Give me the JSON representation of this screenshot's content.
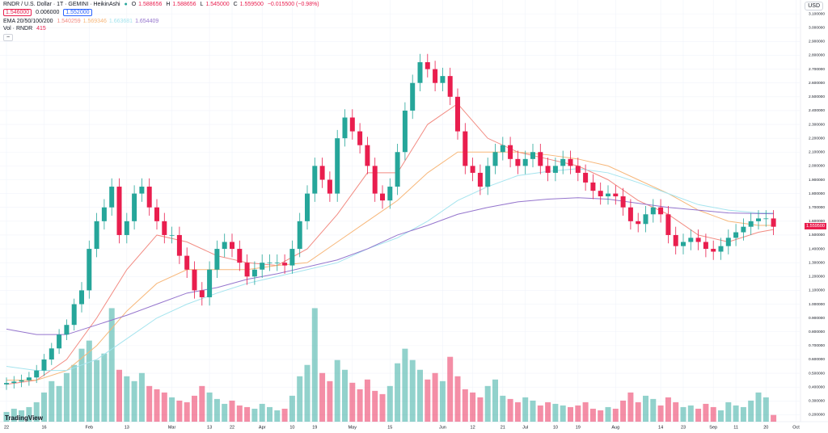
{
  "header": {
    "symbol": "RNDR / U.S. Dollar · 1T · GEMINI · HeikinAshi",
    "o_label": "O",
    "o": "1.588656",
    "h_label": "H",
    "h": "1.588656",
    "l_label": "L",
    "l": "1.545000",
    "c_label": "C",
    "c": "1.559500",
    "change": "−0.015500 (−0.98%)",
    "bid": "1.546000",
    "spread": "0.006000",
    "ask": "1.552000",
    "ema_label": "EMA 20/50/100/200",
    "ema_values": [
      "1.540259",
      "1.569346",
      "1.663681",
      "1.654409"
    ],
    "vol_label": "Vol · RNDR",
    "vol_value": "415",
    "currency": "USD",
    "logo": "TradingView",
    "price_tag": "1.559500"
  },
  "chart_data": {
    "type": "candlestick",
    "up_color": "#26a69a",
    "down_color": "#e91e4e",
    "grid": true,
    "categories": [
      "22",
      null,
      null,
      null,
      null,
      "16",
      null,
      null,
      null,
      null,
      null,
      "Feb",
      null,
      null,
      null,
      null,
      "13",
      null,
      null,
      null,
      null,
      null,
      "Mar",
      null,
      null,
      null,
      null,
      "13",
      null,
      null,
      "22",
      null,
      null,
      null,
      "Apr",
      null,
      null,
      null,
      "10",
      null,
      null,
      "19",
      null,
      null,
      null,
      null,
      "May",
      null,
      null,
      null,
      null,
      "15",
      null,
      null,
      null,
      null,
      null,
      null,
      "Jun",
      null,
      null,
      null,
      "12",
      null,
      null,
      null,
      "21",
      null,
      null,
      "Jul",
      null,
      null,
      null,
      "10",
      null,
      null,
      "19",
      null,
      null,
      null,
      null,
      "Aug",
      null,
      null,
      null,
      null,
      null,
      "14",
      null,
      null,
      "23",
      null,
      null,
      null,
      "Sep",
      null,
      null,
      "11",
      null,
      null,
      null,
      "20",
      null,
      null,
      null,
      "Oct"
    ],
    "open": [
      0.42,
      0.43,
      0.44,
      0.45,
      0.47,
      0.52,
      0.6,
      0.68,
      0.78,
      0.85,
      1.0,
      1.1,
      1.4,
      1.6,
      1.7,
      1.85,
      1.5,
      1.6,
      1.8,
      1.85,
      1.7,
      1.6,
      1.5,
      1.5,
      1.35,
      1.25,
      1.1,
      1.05,
      1.25,
      1.4,
      1.45,
      1.4,
      1.3,
      1.2,
      1.25,
      1.3,
      1.3,
      1.3,
      1.28,
      1.4,
      1.6,
      1.8,
      2.0,
      1.9,
      1.8,
      2.2,
      2.35,
      2.25,
      2.15,
      2.0,
      1.8,
      1.75,
      1.85,
      2.1,
      2.4,
      2.6,
      2.75,
      2.7,
      2.6,
      2.65,
      2.5,
      2.25,
      2.0,
      1.95,
      1.85,
      2.0,
      2.1,
      2.15,
      2.05,
      2.0,
      2.05,
      2.1,
      2.0,
      1.95,
      2.0,
      2.05,
      2.0,
      1.95,
      1.88,
      1.82,
      1.78,
      1.8,
      1.78,
      1.7,
      1.6,
      1.58,
      1.65,
      1.7,
      1.65,
      1.5,
      1.42,
      1.45,
      1.48,
      1.45,
      1.4,
      1.38,
      1.42,
      1.48,
      1.52,
      1.56,
      1.6,
      1.62,
      1.62,
      null,
      null,
      null
    ],
    "high": [
      0.47,
      0.48,
      0.49,
      0.51,
      0.56,
      0.64,
      0.72,
      0.82,
      0.89,
      1.04,
      1.16,
      1.46,
      1.66,
      1.76,
      1.91,
      1.91,
      1.66,
      1.86,
      1.91,
      1.91,
      1.76,
      1.66,
      1.56,
      1.56,
      1.41,
      1.31,
      1.16,
      1.31,
      1.46,
      1.51,
      1.51,
      1.46,
      1.36,
      1.31,
      1.36,
      1.36,
      1.36,
      1.36,
      1.46,
      1.66,
      1.86,
      2.06,
      2.06,
      1.96,
      2.26,
      2.41,
      2.41,
      2.31,
      2.21,
      2.06,
      1.86,
      1.91,
      2.16,
      2.46,
      2.66,
      2.81,
      2.81,
      2.76,
      2.71,
      2.71,
      2.56,
      2.31,
      2.06,
      2.01,
      2.06,
      2.16,
      2.21,
      2.21,
      2.11,
      2.11,
      2.16,
      2.16,
      2.06,
      2.06,
      2.11,
      2.11,
      2.06,
      2.01,
      1.94,
      1.88,
      1.86,
      1.86,
      1.84,
      1.76,
      1.66,
      1.71,
      1.76,
      1.76,
      1.71,
      1.56,
      1.51,
      1.54,
      1.54,
      1.51,
      1.46,
      1.48,
      1.54,
      1.58,
      1.62,
      1.66,
      1.68,
      1.68,
      1.68,
      null,
      null,
      null
    ],
    "low": [
      0.38,
      0.39,
      0.4,
      0.41,
      0.43,
      0.48,
      0.56,
      0.64,
      0.74,
      0.81,
      0.94,
      1.04,
      1.34,
      1.54,
      1.64,
      1.44,
      1.44,
      1.54,
      1.74,
      1.64,
      1.54,
      1.44,
      1.44,
      1.29,
      1.19,
      1.04,
      0.99,
      0.99,
      1.19,
      1.34,
      1.34,
      1.24,
      1.14,
      1.14,
      1.19,
      1.24,
      1.24,
      1.22,
      1.22,
      1.34,
      1.54,
      1.74,
      1.84,
      1.74,
      1.74,
      2.14,
      2.19,
      2.09,
      1.94,
      1.74,
      1.69,
      1.69,
      1.79,
      2.04,
      2.34,
      2.54,
      2.64,
      2.54,
      2.54,
      2.44,
      2.19,
      1.94,
      1.89,
      1.79,
      1.79,
      1.94,
      2.04,
      1.99,
      1.94,
      1.94,
      1.99,
      1.94,
      1.89,
      1.89,
      1.94,
      1.94,
      1.89,
      1.82,
      1.76,
      1.72,
      1.72,
      1.72,
      1.64,
      1.54,
      1.52,
      1.52,
      1.59,
      1.59,
      1.44,
      1.36,
      1.36,
      1.39,
      1.39,
      1.34,
      1.32,
      1.32,
      1.36,
      1.42,
      1.46,
      1.5,
      1.54,
      1.56,
      1.5,
      null,
      null,
      null
    ],
    "close": [
      0.43,
      0.44,
      0.45,
      0.47,
      0.52,
      0.6,
      0.68,
      0.78,
      0.85,
      1.0,
      1.1,
      1.4,
      1.6,
      1.7,
      1.85,
      1.5,
      1.6,
      1.8,
      1.85,
      1.7,
      1.6,
      1.5,
      1.5,
      1.35,
      1.25,
      1.1,
      1.05,
      1.25,
      1.4,
      1.45,
      1.4,
      1.3,
      1.2,
      1.25,
      1.3,
      1.3,
      1.3,
      1.28,
      1.4,
      1.6,
      1.8,
      2.0,
      1.9,
      1.8,
      2.2,
      2.35,
      2.25,
      2.15,
      2.0,
      1.8,
      1.75,
      1.85,
      2.1,
      2.4,
      2.6,
      2.75,
      2.7,
      2.6,
      2.65,
      2.5,
      2.25,
      2.0,
      1.95,
      1.85,
      2.0,
      2.1,
      2.15,
      2.05,
      2.0,
      2.05,
      2.1,
      2.0,
      1.95,
      2.0,
      2.05,
      2.0,
      1.95,
      1.88,
      1.82,
      1.78,
      1.8,
      1.78,
      1.7,
      1.6,
      1.58,
      1.65,
      1.7,
      1.65,
      1.5,
      1.42,
      1.45,
      1.48,
      1.45,
      1.4,
      1.38,
      1.42,
      1.48,
      1.52,
      1.56,
      1.6,
      1.62,
      1.62,
      1.56,
      null,
      null,
      null
    ],
    "volume": [
      600,
      800,
      700,
      900,
      1200,
      1800,
      2500,
      2200,
      3000,
      3500,
      4500,
      5000,
      3800,
      4200,
      7000,
      3200,
      2800,
      2500,
      3000,
      2200,
      2000,
      1800,
      1500,
      1300,
      1200,
      1600,
      2200,
      1800,
      1400,
      1100,
      1300,
      1000,
      900,
      800,
      1100,
      900,
      700,
      800,
      1600,
      2800,
      3500,
      7000,
      3000,
      2500,
      3800,
      3200,
      2400,
      2000,
      2600,
      1900,
      1700,
      2200,
      3600,
      4500,
      3800,
      3200,
      2600,
      3000,
      2500,
      4000,
      2800,
      2000,
      1800,
      1500,
      2200,
      2600,
      1600,
      1400,
      1200,
      1500,
      1300,
      1000,
      1200,
      1100,
      1000,
      900,
      1000,
      1200,
      800,
      700,
      900,
      800,
      1300,
      1800,
      1200,
      1600,
      1400,
      1000,
      1500,
      1200,
      900,
      1000,
      800,
      1100,
      900,
      700,
      1200,
      1000,
      900,
      1300,
      1800,
      1500,
      415,
      null,
      null,
      null
    ],
    "volume_lim": [
      0,
      26000
    ],
    "lines": [
      {
        "color": "#f28b82",
        "x": [
          0,
          4,
          8,
          12,
          16,
          20,
          24,
          28,
          32,
          36,
          40,
          44,
          48,
          52,
          56,
          60,
          64,
          68,
          72,
          76,
          80,
          84,
          88,
          92,
          96,
          100,
          102
        ],
        "values": [
          0.42,
          0.45,
          0.6,
          0.9,
          1.25,
          1.5,
          1.45,
          1.35,
          1.3,
          1.28,
          1.4,
          1.65,
          1.95,
          1.95,
          2.3,
          2.45,
          2.2,
          2.1,
          2.05,
          2.0,
          1.9,
          1.75,
          1.65,
          1.5,
          1.45,
          1.52,
          1.54
        ]
      },
      {
        "color": "#f7b77a",
        "x": [
          0,
          4,
          8,
          12,
          16,
          20,
          24,
          28,
          32,
          36,
          40,
          44,
          48,
          52,
          56,
          60,
          64,
          68,
          72,
          76,
          80,
          84,
          88,
          92,
          96,
          100,
          102
        ],
        "values": [
          0.45,
          0.45,
          0.52,
          0.7,
          0.95,
          1.15,
          1.25,
          1.25,
          1.25,
          1.28,
          1.3,
          1.45,
          1.6,
          1.75,
          1.95,
          2.1,
          2.1,
          2.1,
          2.08,
          2.05,
          2.0,
          1.9,
          1.8,
          1.68,
          1.6,
          1.57,
          1.57
        ]
      },
      {
        "color": "#a5e4ee",
        "x": [
          0,
          4,
          8,
          12,
          16,
          20,
          24,
          28,
          32,
          36,
          40,
          44,
          48,
          52,
          56,
          60,
          64,
          68,
          72,
          76,
          80,
          84,
          88,
          92,
          96,
          100,
          102
        ],
        "values": [
          0.55,
          0.52,
          0.52,
          0.6,
          0.75,
          0.9,
          1.0,
          1.08,
          1.15,
          1.2,
          1.25,
          1.3,
          1.4,
          1.48,
          1.6,
          1.75,
          1.85,
          1.93,
          1.96,
          1.98,
          1.95,
          1.88,
          1.8,
          1.72,
          1.68,
          1.66,
          1.66
        ]
      },
      {
        "color": "#9575cd",
        "x": [
          0,
          4,
          8,
          12,
          16,
          20,
          24,
          28,
          32,
          36,
          40,
          44,
          48,
          52,
          56,
          60,
          64,
          68,
          72,
          76,
          80,
          84,
          88,
          92,
          96,
          100,
          102
        ],
        "values": [
          0.82,
          0.78,
          0.78,
          0.85,
          0.92,
          1.0,
          1.08,
          1.12,
          1.18,
          1.22,
          1.27,
          1.32,
          1.4,
          1.5,
          1.57,
          1.65,
          1.7,
          1.74,
          1.76,
          1.77,
          1.76,
          1.73,
          1.7,
          1.68,
          1.66,
          1.655,
          1.654
        ]
      }
    ],
    "ylim": [
      0.15,
      3.2
    ],
    "yticks": [
      {
        "value": 0.2,
        "label": "0.200000"
      },
      {
        "value": 0.3,
        "label": "0.300000"
      },
      {
        "value": 0.4,
        "label": "0.400000"
      },
      {
        "value": 0.5,
        "label": "0.500000"
      },
      {
        "value": 0.6,
        "label": "0.600000"
      },
      {
        "value": 0.7,
        "label": "0.700000"
      },
      {
        "value": 0.8,
        "label": "0.800000"
      },
      {
        "value": 0.9,
        "label": "0.900000"
      },
      {
        "value": 1.0,
        "label": "1.000000"
      },
      {
        "value": 1.1,
        "label": "1.100000"
      },
      {
        "value": 1.2,
        "label": "1.200000"
      },
      {
        "value": 1.3,
        "label": "1.300000"
      },
      {
        "value": 1.4,
        "label": "1.400000"
      },
      {
        "value": 1.5,
        "label": "1.500000"
      },
      {
        "value": 1.6,
        "label": "1.600000"
      },
      {
        "value": 1.7,
        "label": "1.700000"
      },
      {
        "value": 1.8,
        "label": "1.800000"
      },
      {
        "value": 1.9,
        "label": "1.900000"
      },
      {
        "value": 2.0,
        "label": "2.000000"
      },
      {
        "value": 2.1,
        "label": "2.100000"
      },
      {
        "value": 2.2,
        "label": "2.200000"
      },
      {
        "value": 2.3,
        "label": "2.300000"
      },
      {
        "value": 2.4,
        "label": "2.400000"
      },
      {
        "value": 2.5,
        "label": "2.500000"
      },
      {
        "value": 2.6,
        "label": "2.600000"
      },
      {
        "value": 2.7,
        "label": "2.700000"
      },
      {
        "value": 2.8,
        "label": "2.800000"
      },
      {
        "value": 2.9,
        "label": "2.900000"
      },
      {
        "value": 3.0,
        "label": "3.000000"
      },
      {
        "value": 3.1,
        "label": "3.100000"
      }
    ]
  }
}
